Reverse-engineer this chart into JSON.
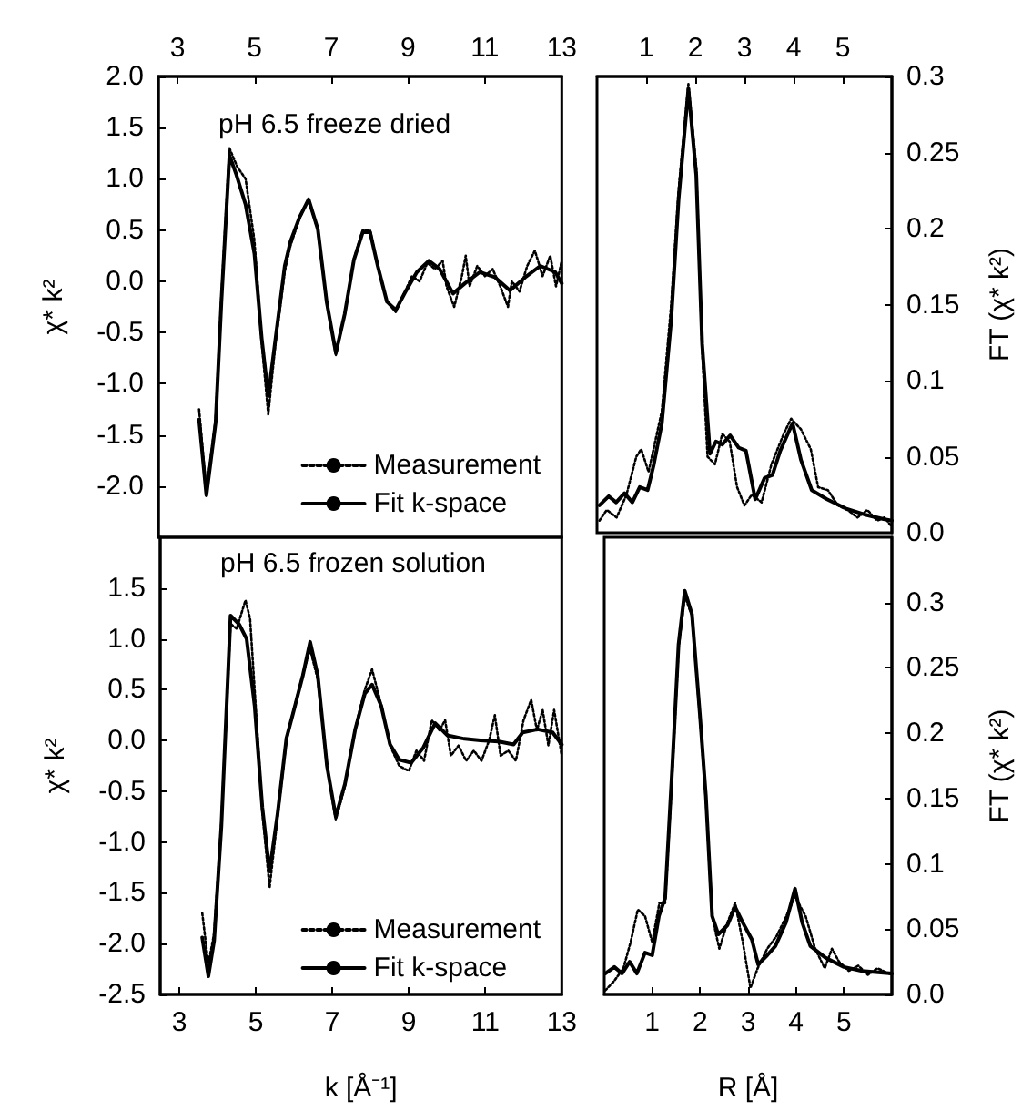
{
  "chart_data": [
    {
      "type": "line",
      "title": "pH 6.5 freeze dried",
      "ylabel": "χ* k²",
      "xlim": [
        2.5,
        13
      ],
      "xticks": [
        3,
        5,
        7,
        9,
        11,
        13
      ],
      "ylim": [
        -2.5,
        2
      ],
      "yticks": [
        {
          "value": 2,
          "label": "2.0"
        },
        1.5,
        {
          "value": 1,
          "label": "1.0"
        },
        0.5,
        {
          "value": 0,
          "label": "0.0"
        },
        -0.5,
        {
          "value": -1,
          "label": "-1.0"
        },
        -1.5,
        {
          "value": -2,
          "label": "-2.0"
        }
      ],
      "legend": "bottom right",
      "series": [
        {
          "name": "Measurement",
          "color": "#000000",
          "line_style": "dotted",
          "x": [
            3.56,
            3.75,
            3.99,
            4.14,
            4.35,
            4.55,
            4.77,
            5.0,
            5.19,
            5.36,
            5.55,
            5.79,
            5.94,
            6.18,
            6.41,
            6.65,
            6.88,
            7.12,
            7.35,
            7.59,
            7.82,
            8.01,
            8.21,
            8.45,
            8.68,
            8.92,
            9.1,
            9.3,
            9.5,
            9.7,
            9.9,
            10.0,
            10.2,
            10.4,
            10.5,
            10.6,
            10.8,
            11.0,
            11.2,
            11.4,
            11.6,
            11.7,
            11.9,
            12.1,
            12.3,
            12.5,
            12.7,
            12.85,
            13.0
          ],
          "values": [
            -1.25,
            -2.05,
            -1.35,
            -0.15,
            1.3,
            1.12,
            1.0,
            0.4,
            -0.6,
            -1.3,
            -0.6,
            0.1,
            0.35,
            0.62,
            0.8,
            0.5,
            -0.2,
            -0.72,
            -0.32,
            0.22,
            0.5,
            0.5,
            0.15,
            -0.2,
            -0.3,
            -0.1,
            0.05,
            0.0,
            0.18,
            0.12,
            0.2,
            -0.05,
            -0.25,
            0.05,
            0.25,
            -0.05,
            0.15,
            0.05,
            0.12,
            -0.05,
            -0.25,
            0.0,
            -0.1,
            0.15,
            0.3,
            0.05,
            0.25,
            -0.05,
            0.2
          ]
        },
        {
          "name": "Fit k-space",
          "color": "#000000",
          "line_style": "solid",
          "x": [
            3.56,
            3.75,
            3.99,
            4.14,
            4.35,
            4.53,
            4.77,
            5.0,
            5.19,
            5.36,
            5.55,
            5.79,
            5.94,
            6.18,
            6.41,
            6.65,
            6.88,
            7.12,
            7.35,
            7.59,
            7.82,
            8.01,
            8.21,
            8.45,
            8.68,
            8.92,
            9.23,
            9.54,
            9.82,
            10.17,
            10.48,
            10.87,
            11.26,
            11.65,
            12.05,
            12.44,
            12.83,
            13.0
          ],
          "values": [
            -1.35,
            -2.09,
            -1.38,
            -0.2,
            1.23,
            1.04,
            0.75,
            0.27,
            -0.56,
            -1.12,
            -0.56,
            0.15,
            0.39,
            0.63,
            0.8,
            0.51,
            -0.2,
            -0.7,
            -0.32,
            0.21,
            0.48,
            0.48,
            0.15,
            -0.2,
            -0.28,
            -0.11,
            0.09,
            0.2,
            0.12,
            -0.12,
            -0.02,
            0.09,
            0.04,
            -0.09,
            0.04,
            0.15,
            0.09,
            -0.02
          ]
        }
      ]
    },
    {
      "type": "line",
      "y2label": "FT (χ* k²)",
      "xlim": [
        0,
        6
      ],
      "xticks": [
        1,
        2,
        3,
        4,
        5
      ],
      "y2lim": [
        0,
        0.3
      ],
      "y2ticks": [
        {
          "value": 0,
          "label": "0.0"
        },
        0.05,
        0.1,
        0.15,
        0.2,
        0.25,
        0.3
      ],
      "series": [
        {
          "color": "#000000",
          "line_style": "dotted",
          "axis": "y2",
          "x": [
            0.05,
            0.2,
            0.4,
            0.6,
            0.8,
            0.9,
            1.05,
            1.15,
            1.32,
            1.51,
            1.66,
            1.86,
            2.02,
            2.14,
            2.25,
            2.4,
            2.55,
            2.7,
            2.85,
            3.0,
            3.15,
            3.35,
            3.55,
            3.8,
            3.95,
            4.15,
            4.35,
            4.5,
            4.7,
            4.9,
            5.1,
            5.3,
            5.5,
            5.7,
            5.85,
            6.0
          ],
          "values": [
            0.008,
            0.015,
            0.01,
            0.025,
            0.05,
            0.055,
            0.04,
            0.055,
            0.08,
            0.15,
            0.225,
            0.295,
            0.24,
            0.12,
            0.05,
            0.045,
            0.065,
            0.06,
            0.03,
            0.018,
            0.025,
            0.02,
            0.045,
            0.065,
            0.075,
            0.068,
            0.055,
            0.03,
            0.028,
            0.018,
            0.015,
            0.01,
            0.015,
            0.008,
            0.01,
            0.004
          ]
        },
        {
          "color": "#000000",
          "line_style": "solid",
          "axis": "y2",
          "x": [
            0.05,
            0.24,
            0.39,
            0.56,
            0.72,
            0.87,
            1.03,
            1.15,
            1.32,
            1.51,
            1.66,
            1.86,
            2.02,
            2.14,
            2.3,
            2.42,
            2.55,
            2.71,
            2.88,
            3.03,
            3.22,
            3.41,
            3.57,
            3.73,
            3.98,
            4.15,
            4.37,
            4.68,
            5.06,
            5.44,
            5.83,
            6.0
          ],
          "values": [
            0.018,
            0.024,
            0.02,
            0.026,
            0.02,
            0.03,
            0.028,
            0.044,
            0.072,
            0.14,
            0.219,
            0.292,
            0.235,
            0.124,
            0.052,
            0.06,
            0.058,
            0.064,
            0.056,
            0.054,
            0.022,
            0.036,
            0.038,
            0.054,
            0.072,
            0.048,
            0.028,
            0.022,
            0.016,
            0.012,
            0.009,
            0.008
          ]
        }
      ]
    },
    {
      "type": "line",
      "title": "pH 6.5 frozen solution",
      "xlabel": "k [Å⁻¹]",
      "ylabel": "χ* k²",
      "xlim": [
        2.5,
        13
      ],
      "xticks": [
        3,
        5,
        7,
        9,
        11,
        13
      ],
      "ylim": [
        -2.5,
        2
      ],
      "yticks": [
        1.5,
        {
          "value": 1,
          "label": "1.0"
        },
        0.5,
        {
          "value": 0,
          "label": "0.0"
        },
        -0.5,
        {
          "value": -1,
          "label": "-1.0"
        },
        -1.5,
        {
          "value": -2,
          "label": "-2.0"
        },
        -2.5
      ],
      "legend": "bottom right",
      "series": [
        {
          "name": "Measurement",
          "color": "#000000",
          "line_style": "dotted",
          "x": [
            3.6,
            3.76,
            3.91,
            4.1,
            4.34,
            4.5,
            4.73,
            4.85,
            4.97,
            5.17,
            5.36,
            5.57,
            5.8,
            5.99,
            6.23,
            6.42,
            6.62,
            6.86,
            7.09,
            7.33,
            7.6,
            7.85,
            8.04,
            8.28,
            8.51,
            8.75,
            9.0,
            9.2,
            9.4,
            9.6,
            9.8,
            9.95,
            10.1,
            10.3,
            10.5,
            10.7,
            10.9,
            11.1,
            11.25,
            11.4,
            11.6,
            11.8,
            12.0,
            12.2,
            12.35,
            12.5,
            12.65,
            12.8,
            13.0
          ],
          "values": [
            -1.7,
            -2.2,
            -1.9,
            -0.8,
            1.15,
            1.1,
            1.38,
            1.2,
            0.5,
            -0.7,
            -1.45,
            -0.75,
            0.0,
            0.3,
            0.65,
            0.9,
            0.6,
            -0.25,
            -0.78,
            -0.45,
            0.12,
            0.5,
            0.7,
            0.35,
            -0.05,
            -0.25,
            -0.3,
            -0.1,
            -0.2,
            0.2,
            0.1,
            0.2,
            -0.15,
            -0.05,
            -0.2,
            -0.1,
            -0.2,
            0.0,
            0.25,
            -0.15,
            -0.1,
            -0.2,
            0.2,
            0.4,
            0.1,
            0.3,
            -0.05,
            0.3,
            -0.15
          ]
        },
        {
          "name": "Fit k-space",
          "color": "#000000",
          "line_style": "solid",
          "x": [
            3.6,
            3.76,
            3.91,
            4.1,
            4.34,
            4.57,
            4.76,
            4.97,
            5.17,
            5.36,
            5.57,
            5.8,
            5.99,
            6.23,
            6.42,
            6.62,
            6.86,
            7.09,
            7.33,
            7.6,
            7.85,
            8.04,
            8.28,
            8.51,
            8.75,
            9.06,
            9.38,
            9.69,
            10.01,
            10.4,
            10.87,
            11.35,
            11.74,
            11.98,
            12.37,
            12.76,
            13.0
          ],
          "values": [
            -1.94,
            -2.32,
            -1.97,
            -0.84,
            1.23,
            1.14,
            1.0,
            0.34,
            -0.66,
            -1.29,
            -0.72,
            0.02,
            0.29,
            0.64,
            0.97,
            0.64,
            -0.25,
            -0.75,
            -0.43,
            0.11,
            0.46,
            0.55,
            0.34,
            -0.04,
            -0.19,
            -0.22,
            -0.07,
            0.17,
            0.05,
            0.02,
            0.0,
            -0.01,
            -0.04,
            0.08,
            0.11,
            0.08,
            -0.04
          ]
        }
      ]
    },
    {
      "type": "line",
      "xlabel": "R [Å]",
      "y2label": "FT (χ* k²)",
      "xlim": [
        0,
        6
      ],
      "xticks": [
        1,
        2,
        3,
        4,
        5
      ],
      "y2lim": [
        0,
        0.35
      ],
      "y2ticks": [
        {
          "value": 0,
          "label": "0.0"
        },
        0.05,
        0.1,
        0.15,
        0.2,
        0.25,
        0.3
      ],
      "series": [
        {
          "color": "#000000",
          "line_style": "dotted",
          "axis": "y2",
          "x": [
            0.02,
            0.2,
            0.4,
            0.55,
            0.7,
            0.85,
            1.0,
            1.15,
            1.27,
            1.42,
            1.55,
            1.68,
            1.83,
            2.0,
            2.12,
            2.25,
            2.4,
            2.57,
            2.73,
            2.89,
            3.05,
            3.2,
            3.4,
            3.6,
            3.8,
            3.98,
            4.2,
            4.4,
            4.6,
            4.75,
            4.9,
            5.1,
            5.3,
            5.5,
            5.7,
            6.0
          ],
          "values": [
            0.003,
            0.01,
            0.02,
            0.04,
            0.065,
            0.06,
            0.04,
            0.07,
            0.07,
            0.17,
            0.265,
            0.305,
            0.29,
            0.21,
            0.15,
            0.06,
            0.035,
            0.055,
            0.07,
            0.04,
            0.005,
            0.02,
            0.035,
            0.045,
            0.06,
            0.075,
            0.06,
            0.035,
            0.02,
            0.035,
            0.025,
            0.018,
            0.022,
            0.015,
            0.02,
            0.015
          ]
        },
        {
          "color": "#000000",
          "line_style": "solid",
          "axis": "y2",
          "x": [
            0.02,
            0.21,
            0.37,
            0.53,
            0.68,
            0.85,
            1.0,
            1.14,
            1.27,
            1.42,
            1.55,
            1.68,
            1.83,
            2.0,
            2.12,
            2.25,
            2.38,
            2.57,
            2.73,
            2.89,
            3.08,
            3.21,
            3.4,
            3.57,
            3.79,
            3.98,
            4.13,
            4.3,
            4.62,
            5.0,
            5.38,
            6.0
          ],
          "values": [
            0.016,
            0.021,
            0.016,
            0.025,
            0.016,
            0.032,
            0.03,
            0.06,
            0.074,
            0.175,
            0.268,
            0.309,
            0.291,
            0.212,
            0.152,
            0.06,
            0.046,
            0.053,
            0.067,
            0.055,
            0.042,
            0.023,
            0.03,
            0.037,
            0.055,
            0.081,
            0.055,
            0.037,
            0.028,
            0.021,
            0.018,
            0.016
          ]
        }
      ]
    }
  ]
}
